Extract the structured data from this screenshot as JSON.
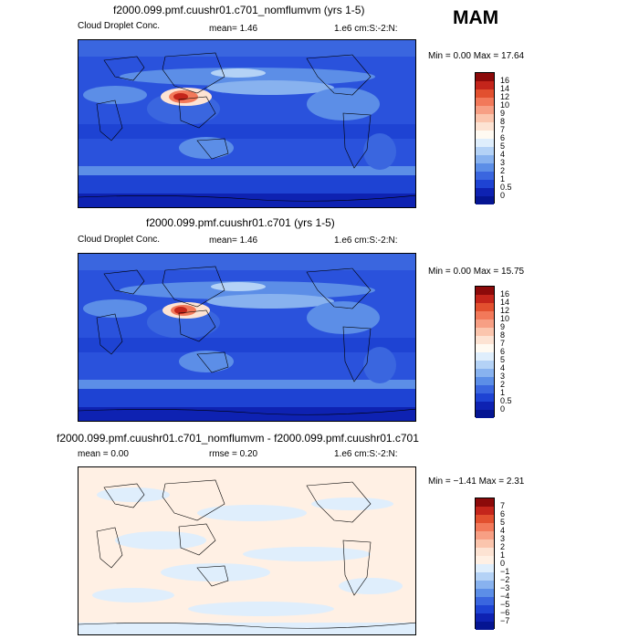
{
  "season": "MAM",
  "panels": [
    {
      "title": "f2000.099.pmf.cuushr01.c701_nomflumvm (yrs 1-5)",
      "left_label": "Cloud Droplet Conc.",
      "stat": "mean=    1.46",
      "units": "1.e6 cm:S:-2:N:",
      "minmax": "Min =    0.00 Max =   17.64",
      "levels": [
        "16",
        "14",
        "12",
        "10",
        "9",
        "8",
        "7",
        "6",
        "5",
        "4",
        "3",
        "2",
        "1",
        "0.5",
        "0"
      ],
      "colors": [
        "#8c0a0a",
        "#c4251b",
        "#e2502f",
        "#f2795a",
        "#f79f84",
        "#fbc5ad",
        "#fde3d3",
        "#fffaf2",
        "#dfeefc",
        "#b4d2f6",
        "#88b2ef",
        "#5c8ee7",
        "#3a66df",
        "#1e43d3",
        "#0e22b2",
        "#051592"
      ]
    },
    {
      "title": "f2000.099.pmf.cuushr01.c701 (yrs 1-5)",
      "left_label": "Cloud Droplet Conc.",
      "stat": "mean=    1.46",
      "units": "1.e6 cm:S:-2:N:",
      "minmax": "Min =    0.00 Max =   15.75",
      "levels": [
        "16",
        "14",
        "12",
        "10",
        "9",
        "8",
        "7",
        "6",
        "5",
        "4",
        "3",
        "2",
        "1",
        "0.5",
        "0"
      ],
      "colors": [
        "#8c0a0a",
        "#c4251b",
        "#e2502f",
        "#f2795a",
        "#f79f84",
        "#fbc5ad",
        "#fde3d3",
        "#fffaf2",
        "#dfeefc",
        "#b4d2f6",
        "#88b2ef",
        "#5c8ee7",
        "#3a66df",
        "#1e43d3",
        "#0e22b2",
        "#051592"
      ]
    },
    {
      "title": "f2000.099.pmf.cuushr01.c701_nomflumvm - f2000.099.pmf.cuushr01.c701",
      "left_label": "mean =    0.00",
      "stat": "rmse =    0.20",
      "units": "1.e6 cm:S:-2:N:",
      "minmax": "Min =  −1.41 Max =    2.31",
      "levels": [
        "7",
        "6",
        "5",
        "4",
        "3",
        "2",
        "1",
        "0",
        "−1",
        "−2",
        "−3",
        "−4",
        "−5",
        "−6",
        "−7"
      ],
      "colors": [
        "#8c0a0a",
        "#c4251b",
        "#e2502f",
        "#f2795a",
        "#f79f84",
        "#fbc5ad",
        "#fde3d3",
        "#fff0e4",
        "#dfeefc",
        "#b4d2f6",
        "#88b2ef",
        "#5c8ee7",
        "#3a66df",
        "#1e43d3",
        "#0e22b2",
        "#051592"
      ]
    }
  ]
}
